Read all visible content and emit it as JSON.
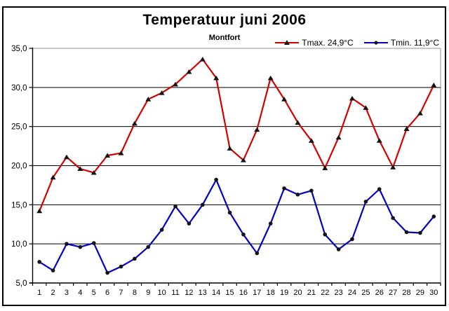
{
  "chart_data": {
    "type": "line",
    "title": "Temperatuur juni 2006",
    "subtitle": "Montfort",
    "location": "Montfort",
    "x": [
      1,
      2,
      3,
      4,
      5,
      6,
      7,
      8,
      9,
      10,
      11,
      12,
      13,
      14,
      15,
      16,
      17,
      18,
      19,
      20,
      21,
      22,
      23,
      24,
      25,
      26,
      27,
      28,
      29,
      30
    ],
    "series": [
      {
        "name": "Tmax. 24,9°C",
        "color": "#d60000",
        "marker": "triangle",
        "values": [
          14.2,
          18.5,
          21.1,
          19.6,
          19.1,
          21.3,
          21.6,
          25.4,
          28.5,
          29.3,
          30.4,
          32.0,
          33.6,
          31.2,
          22.2,
          20.7,
          24.6,
          31.2,
          28.5,
          25.5,
          23.2,
          19.7,
          23.6,
          28.6,
          27.4,
          23.2,
          19.8,
          24.7,
          26.7,
          30.3
        ]
      },
      {
        "name": "Tmin. 11,9°C",
        "color": "#0000c8",
        "marker": "circle",
        "values": [
          7.7,
          6.6,
          10.0,
          9.6,
          10.1,
          6.3,
          7.1,
          8.1,
          9.6,
          11.8,
          14.8,
          12.6,
          15.0,
          18.2,
          14.0,
          11.2,
          8.8,
          12.6,
          17.1,
          16.3,
          16.8,
          11.2,
          9.3,
          10.6,
          15.4,
          17.0,
          13.3,
          11.5,
          11.4,
          13.5
        ]
      }
    ],
    "ylim": [
      5,
      35
    ],
    "yticks": [
      5,
      10,
      15,
      20,
      25,
      30,
      35
    ],
    "ytick_labels": [
      "5,0",
      "10,0",
      "15,0",
      "20,0",
      "25,0",
      "30,0",
      "35,0"
    ],
    "grid": true,
    "gridline_color": "#000000",
    "frame_color": "#a6a6a6",
    "marker_color": "#141414",
    "legend_position": "top-right",
    "decimal_separator": ","
  }
}
